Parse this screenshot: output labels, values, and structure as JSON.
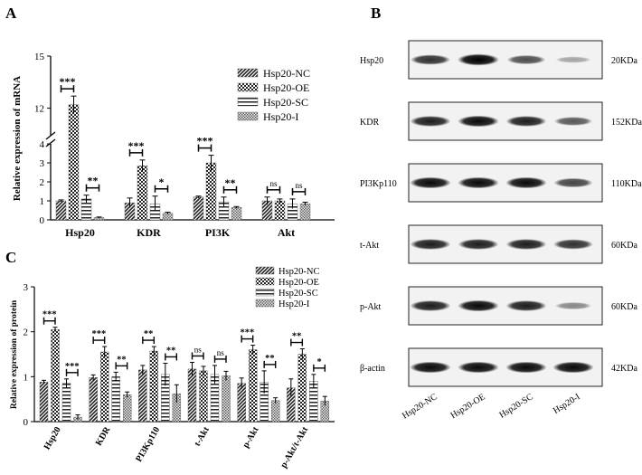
{
  "panels": {
    "a_letter": "A",
    "b_letter": "B",
    "c_letter": "C"
  },
  "legend": {
    "groups": [
      "Hsp20-NC",
      "Hsp20-OE",
      "Hsp20-SC",
      "Hsp20-I"
    ]
  },
  "chart_data": [
    {
      "panel": "A",
      "type": "bar",
      "ylabel": "Relative expression of mRNA",
      "categories": [
        "Hsp20",
        "KDR",
        "PI3K",
        "Akt"
      ],
      "y_axis": {
        "segments": [
          [
            0,
            4
          ],
          [
            10,
            15
          ]
        ],
        "lower_ticks": [
          0,
          1,
          2,
          3,
          4
        ],
        "upper_ticks": [
          12,
          15
        ],
        "broken": true
      },
      "series": [
        {
          "name": "Hsp20-NC",
          "values": [
            1.0,
            0.9,
            1.2,
            1.0
          ],
          "errors": [
            0.05,
            0.25,
            0.05,
            0.2
          ]
        },
        {
          "name": "Hsp20-OE",
          "values": [
            12.2,
            2.85,
            3.0,
            1.0
          ],
          "errors": [
            0.5,
            0.3,
            0.4,
            0.1
          ]
        },
        {
          "name": "Hsp20-SC",
          "values": [
            1.1,
            0.85,
            0.95,
            0.85
          ],
          "errors": [
            0.2,
            0.4,
            0.25,
            0.25
          ]
        },
        {
          "name": "Hsp20-I",
          "values": [
            0.12,
            0.35,
            0.65,
            0.85
          ],
          "errors": [
            0.03,
            0.05,
            0.05,
            0.08
          ]
        }
      ],
      "significance": [
        {
          "category": "Hsp20",
          "pair": "NC-OE",
          "label": "***"
        },
        {
          "category": "Hsp20",
          "pair": "SC-I",
          "label": "**"
        },
        {
          "category": "KDR",
          "pair": "NC-OE",
          "label": "***"
        },
        {
          "category": "KDR",
          "pair": "SC-I",
          "label": "*"
        },
        {
          "category": "PI3K",
          "pair": "NC-OE",
          "label": "***"
        },
        {
          "category": "PI3K",
          "pair": "SC-I",
          "label": "**"
        },
        {
          "category": "Akt",
          "pair": "NC-OE",
          "label": "ns"
        },
        {
          "category": "Akt",
          "pair": "SC-I",
          "label": "ns"
        }
      ],
      "legend_position": "top-right",
      "grid": false
    },
    {
      "panel": "C",
      "type": "bar",
      "ylabel": "Relative expression of protein",
      "categories": [
        "Hsp20",
        "KDR",
        "PI3Kp110",
        "t-Akt",
        "p-Akt",
        "p-Akt/t-Akt"
      ],
      "ylim": [
        0,
        3
      ],
      "yticks": [
        0,
        1,
        2,
        3
      ],
      "series": [
        {
          "name": "Hsp20-NC",
          "values": [
            0.88,
            0.98,
            1.15,
            1.17,
            0.85,
            0.75
          ],
          "errors": [
            0.04,
            0.06,
            0.1,
            0.15,
            0.12,
            0.2
          ]
        },
        {
          "name": "Hsp20-OE",
          "values": [
            2.05,
            1.55,
            1.57,
            1.13,
            1.6,
            1.5
          ],
          "errors": [
            0.05,
            0.12,
            0.1,
            0.1,
            0.1,
            0.12
          ]
        },
        {
          "name": "Hsp20-SC",
          "values": [
            0.85,
            1.0,
            1.05,
            1.05,
            0.88,
            0.9
          ],
          "errors": [
            0.1,
            0.1,
            0.25,
            0.2,
            0.25,
            0.15
          ]
        },
        {
          "name": "Hsp20-I",
          "values": [
            0.1,
            0.6,
            0.62,
            1.02,
            0.47,
            0.46
          ],
          "errors": [
            0.05,
            0.06,
            0.2,
            0.1,
            0.06,
            0.1
          ]
        }
      ],
      "significance": [
        {
          "category": "Hsp20",
          "pair": "NC-OE",
          "label": "***"
        },
        {
          "category": "Hsp20",
          "pair": "SC-I",
          "label": "***"
        },
        {
          "category": "KDR",
          "pair": "NC-OE",
          "label": "***"
        },
        {
          "category": "KDR",
          "pair": "SC-I",
          "label": "**"
        },
        {
          "category": "PI3Kp110",
          "pair": "NC-OE",
          "label": "**"
        },
        {
          "category": "PI3Kp110",
          "pair": "SC-I",
          "label": "**"
        },
        {
          "category": "t-Akt",
          "pair": "NC-OE",
          "label": "ns"
        },
        {
          "category": "t-Akt",
          "pair": "SC-I",
          "label": "ns"
        },
        {
          "category": "p-Akt",
          "pair": "NC-OE",
          "label": "***"
        },
        {
          "category": "p-Akt",
          "pair": "SC-I",
          "label": "**"
        },
        {
          "category": "p-Akt/t-Akt",
          "pair": "NC-OE",
          "label": "**"
        },
        {
          "category": "p-Akt/t-Akt",
          "pair": "SC-I",
          "label": "*"
        }
      ],
      "legend_position": "top-right",
      "grid": false
    }
  ],
  "blot": {
    "rows": [
      {
        "protein": "Hsp20",
        "size": "20KDa",
        "intensity": [
          0.75,
          1.0,
          0.6,
          0.15
        ]
      },
      {
        "protein": "KDR",
        "size": "152KDa",
        "intensity": [
          0.85,
          0.95,
          0.85,
          0.55
        ]
      },
      {
        "protein": "PI3Kp110",
        "size": "110KDa",
        "intensity": [
          0.95,
          0.95,
          0.95,
          0.65
        ]
      },
      {
        "protein": "t-Akt",
        "size": "60KDa",
        "intensity": [
          0.85,
          0.85,
          0.85,
          0.75
        ]
      },
      {
        "protein": "p-Akt",
        "size": "60KDa",
        "intensity": [
          0.85,
          0.95,
          0.85,
          0.3
        ]
      },
      {
        "protein": "β-actin",
        "size": "42KDa",
        "intensity": [
          0.95,
          0.95,
          0.95,
          0.95
        ]
      }
    ],
    "lanes": [
      "Hsp20-NC",
      "Hsp20-OE",
      "Hsp20-SC",
      "Hsp20-I"
    ]
  }
}
